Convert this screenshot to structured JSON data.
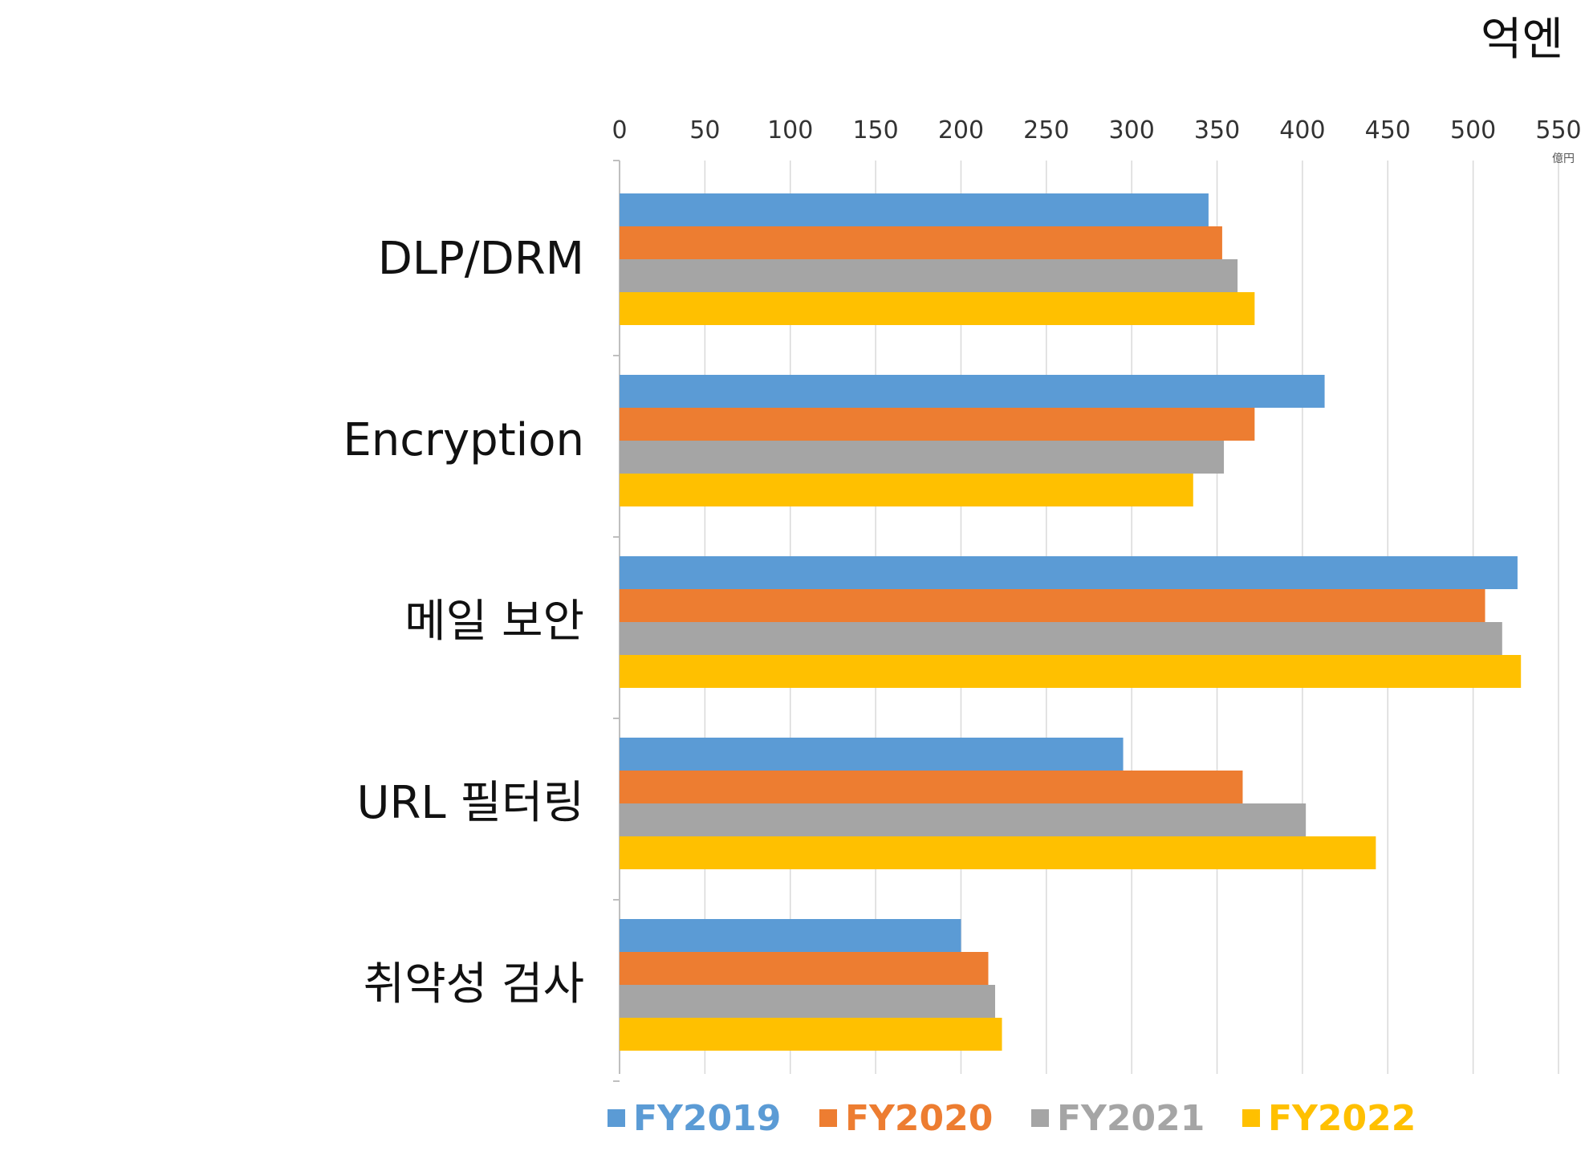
{
  "chart_data": {
    "type": "bar",
    "orientation": "horizontal",
    "unit_label": "억엔",
    "axis_unit_small": "億円",
    "categories": [
      "DLP/DRM",
      "Encryption",
      "메일 보안",
      "URL 필터링",
      "취약성 검사"
    ],
    "series": [
      {
        "name": "FY2019",
        "color": "#5b9bd5",
        "values": [
          345,
          413,
          526,
          295,
          200
        ]
      },
      {
        "name": "FY2020",
        "color": "#ed7d31",
        "values": [
          353,
          372,
          507,
          365,
          216
        ]
      },
      {
        "name": "FY2021",
        "color": "#a5a5a5",
        "values": [
          362,
          354,
          517,
          402,
          220
        ]
      },
      {
        "name": "FY2022",
        "color": "#ffc000",
        "values": [
          372,
          336,
          528,
          443,
          224
        ]
      }
    ],
    "xlim": [
      0,
      550
    ],
    "ticks": [
      0,
      50,
      100,
      150,
      200,
      250,
      300,
      350,
      400,
      450,
      500,
      550
    ],
    "grid": true,
    "legend": "bottom"
  }
}
